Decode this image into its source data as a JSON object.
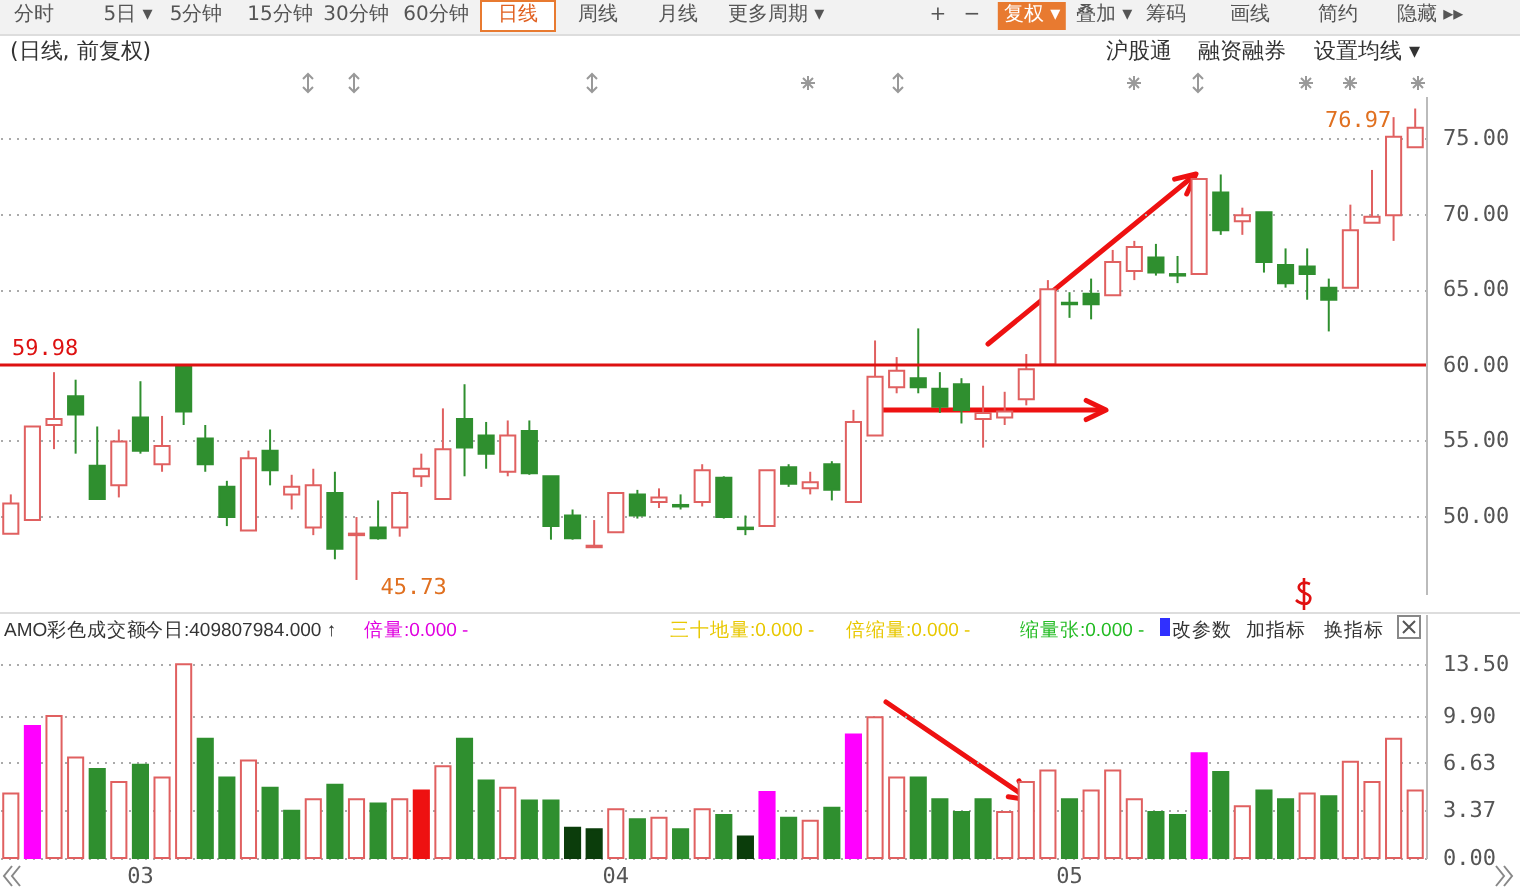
{
  "chart_data": [
    {
      "type": "other",
      "annotations": [
        "分时",
        "5日 ▾",
        "5分钟",
        "15分钟",
        "30分钟",
        "60分钟",
        "日线",
        "周线",
        "月线",
        "更多周期 ▾",
        "+",
        "−",
        "复权 ▾",
        "叠加 ▾",
        "筹码",
        "画线",
        "简约",
        "隐藏 ▸▸"
      ]
    },
    {
      "type": "candlestick",
      "title": "(日线, 前复权)",
      "annotations": [
        "沪股通",
        "融资融券",
        "设置均线 ▾",
        "45.73",
        "76.97"
      ],
      "categories": [
        null,
        null,
        null,
        null,
        null,
        null,
        "03",
        null,
        null,
        null,
        null,
        null,
        null,
        null,
        null,
        null,
        null,
        null,
        null,
        null,
        null,
        null,
        null,
        null,
        null,
        null,
        null,
        null,
        "04",
        null,
        null,
        null,
        null,
        null,
        null,
        null,
        null,
        null,
        null,
        null,
        null,
        null,
        null,
        null,
        null,
        null,
        null,
        null,
        null,
        "05",
        null,
        null,
        null,
        null,
        null,
        null,
        null,
        null,
        null,
        null,
        null,
        null,
        null,
        null,
        null,
        null
      ],
      "ohlc": [
        [
          48.8,
          51.4,
          48.8,
          50.8
        ],
        [
          49.7,
          55.9,
          49.7,
          55.9
        ],
        [
          56.0,
          59.5,
          54.4,
          56.4
        ],
        [
          57.9,
          59.0,
          54.1,
          56.7
        ],
        [
          53.3,
          55.9,
          51.1,
          51.1
        ],
        [
          52.0,
          55.7,
          51.2,
          54.9
        ],
        [
          56.5,
          58.9,
          54.1,
          54.3
        ],
        [
          53.4,
          56.6,
          52.9,
          54.6
        ],
        [
          59.98,
          59.98,
          56.0,
          56.9
        ],
        [
          55.1,
          56.0,
          52.9,
          53.4
        ],
        [
          51.9,
          52.3,
          49.3,
          49.9
        ],
        [
          49.0,
          54.3,
          49.0,
          53.8
        ],
        [
          54.3,
          55.7,
          52.0,
          53.0
        ],
        [
          51.4,
          52.7,
          50.4,
          51.9
        ],
        [
          49.2,
          53.1,
          48.7,
          52.0
        ],
        [
          51.5,
          52.9,
          47.1,
          47.8
        ],
        [
          48.7,
          49.9,
          45.73,
          48.8
        ],
        [
          49.2,
          51.0,
          48.4,
          48.5
        ],
        [
          49.2,
          51.6,
          48.6,
          51.5
        ],
        [
          52.6,
          54.1,
          51.9,
          53.1
        ],
        [
          51.1,
          57.1,
          51.1,
          54.4
        ],
        [
          56.4,
          58.7,
          52.6,
          54.5
        ],
        [
          55.3,
          56.2,
          53.1,
          54.1
        ],
        [
          52.9,
          56.3,
          52.6,
          55.3
        ],
        [
          55.6,
          56.3,
          52.7,
          52.8
        ],
        [
          52.6,
          52.6,
          48.4,
          49.3
        ],
        [
          50.0,
          50.4,
          48.4,
          48.5
        ],
        [
          47.9,
          49.7,
          47.9,
          48.0
        ],
        [
          48.9,
          51.5,
          48.9,
          51.5
        ],
        [
          51.4,
          51.7,
          49.8,
          50.0
        ],
        [
          50.9,
          51.8,
          50.5,
          51.2
        ],
        [
          50.7,
          51.4,
          50.4,
          50.6
        ],
        [
          50.9,
          53.4,
          50.6,
          53.0
        ],
        [
          52.5,
          52.6,
          49.8,
          49.9
        ],
        [
          49.2,
          50.0,
          48.7,
          49.1
        ],
        [
          49.3,
          53.0,
          49.3,
          53.0
        ],
        [
          53.2,
          53.4,
          51.9,
          52.1
        ],
        [
          51.8,
          52.9,
          51.4,
          52.2
        ],
        [
          53.4,
          53.6,
          51.0,
          51.7
        ],
        [
          50.9,
          57.0,
          50.9,
          56.2
        ],
        [
          55.3,
          61.6,
          55.3,
          59.2
        ],
        [
          58.5,
          60.5,
          58.1,
          59.6
        ],
        [
          59.1,
          62.4,
          58.1,
          58.5
        ],
        [
          58.4,
          59.5,
          56.8,
          57.2
        ],
        [
          58.7,
          59.1,
          56.1,
          57.0
        ],
        [
          56.4,
          58.6,
          54.5,
          56.8
        ],
        [
          56.5,
          58.2,
          56.0,
          56.9
        ],
        [
          57.7,
          60.7,
          57.3,
          59.7
        ],
        [
          60.0,
          65.6,
          60.0,
          65.0
        ],
        [
          64.1,
          64.8,
          63.1,
          64.0
        ],
        [
          64.7,
          65.7,
          63.0,
          64.0
        ],
        [
          64.6,
          67.6,
          64.6,
          66.8
        ],
        [
          66.2,
          68.2,
          65.6,
          67.8
        ],
        [
          67.1,
          68.0,
          65.9,
          66.1
        ],
        [
          66.0,
          67.2,
          65.4,
          65.9
        ],
        [
          66.0,
          72.3,
          66.0,
          72.3
        ],
        [
          71.4,
          72.6,
          68.6,
          68.9
        ],
        [
          69.5,
          70.4,
          68.6,
          69.9
        ],
        [
          70.1,
          70.1,
          66.1,
          66.8
        ],
        [
          66.6,
          67.7,
          65.1,
          65.4
        ],
        [
          66.5,
          67.7,
          64.3,
          66.0
        ],
        [
          65.1,
          65.7,
          62.2,
          64.3
        ],
        [
          65.1,
          70.6,
          65.1,
          68.9
        ],
        [
          69.4,
          72.9,
          69.4,
          69.8
        ],
        [
          69.9,
          76.4,
          68.2,
          75.1
        ],
        [
          74.4,
          76.97,
          74.4,
          75.7
        ]
      ],
      "colors": [
        "#e06060",
        "#e06060",
        "#e06060",
        "#2f8f2f",
        "#2f8f2f",
        "#e06060",
        "#2f8f2f",
        "#e06060",
        "#2f8f2f",
        "#2f8f2f",
        "#2f8f2f",
        "#e06060",
        "#2f8f2f",
        "#e06060",
        "#e06060",
        "#2f8f2f",
        "#e06060",
        "#2f8f2f",
        "#e06060",
        "#e06060",
        "#e06060",
        "#2f8f2f",
        "#2f8f2f",
        "#e06060",
        "#2f8f2f",
        "#2f8f2f",
        "#2f8f2f",
        "#e06060",
        "#e06060",
        "#2f8f2f",
        "#e06060",
        "#2f8f2f",
        "#e06060",
        "#2f8f2f",
        "#2f8f2f",
        "#e06060",
        "#2f8f2f",
        "#e06060",
        "#2f8f2f",
        "#e06060",
        "#e06060",
        "#e06060",
        "#2f8f2f",
        "#2f8f2f",
        "#2f8f2f",
        "#e06060",
        "#e06060",
        "#e06060",
        "#e06060",
        "#2f8f2f",
        "#2f8f2f",
        "#e06060",
        "#e06060",
        "#2f8f2f",
        "#2f8f2f",
        "#e06060",
        "#2f8f2f",
        "#e06060",
        "#2f8f2f",
        "#2f8f2f",
        "#2f8f2f",
        "#2f8f2f",
        "#e06060",
        "#e06060",
        "#e06060",
        "#e06060"
      ],
      "ylim": [
        44.8,
        77.8
      ],
      "yticks": [
        {
          "value": 50,
          "label": "50.00"
        },
        {
          "value": 55,
          "label": "55.00"
        },
        {
          "value": 60,
          "label": "60.00"
        },
        {
          "value": 65,
          "label": "65.00"
        },
        {
          "value": 70,
          "label": "70.00"
        },
        {
          "value": 75,
          "label": "75.00"
        }
      ],
      "grid": "y",
      "tick_labels": "y",
      "ref_lines": [
        {
          "axis": "y",
          "value": 59.98,
          "label": "59.98",
          "color": "#dd1111"
        }
      ]
    },
    {
      "type": "bar",
      "title": "AMO彩色成交额",
      "annotations": [
        "今日:409807984.000 ↑",
        "倍量:0.000 -",
        "三十地量:0.000 -",
        "倍缩量:0.000 -",
        "缩量张:0.000 -",
        "改参数",
        "加指标",
        "换指标"
      ],
      "categories": [
        null,
        null,
        null,
        null,
        null,
        null,
        "03",
        null,
        null,
        null,
        null,
        null,
        null,
        null,
        null,
        null,
        null,
        null,
        null,
        null,
        null,
        null,
        null,
        null,
        null,
        null,
        null,
        null,
        "04",
        null,
        null,
        null,
        null,
        null,
        null,
        null,
        null,
        null,
        null,
        null,
        null,
        null,
        null,
        null,
        null,
        null,
        null,
        null,
        null,
        "05",
        null,
        null,
        null,
        null,
        null,
        null,
        null,
        null,
        null,
        null,
        null,
        null,
        null,
        null,
        null,
        null
      ],
      "values": [
        4.5,
        9.2,
        9.9,
        7.0,
        6.2,
        5.3,
        6.5,
        5.6,
        13.5,
        8.3,
        5.6,
        6.8,
        4.9,
        3.3,
        4.1,
        5.1,
        4.1,
        3.8,
        4.1,
        4.7,
        6.4,
        8.3,
        5.4,
        4.9,
        4.0,
        4.0,
        2.1,
        2.0,
        3.4,
        2.7,
        2.8,
        2.0,
        3.4,
        3.0,
        1.5,
        4.6,
        2.8,
        2.6,
        3.5,
        8.6,
        9.8,
        5.6,
        5.6,
        4.1,
        3.2,
        4.1,
        3.2,
        5.3,
        6.1,
        4.1,
        4.7,
        6.1,
        4.1,
        3.2,
        3.0,
        7.3,
        6.0,
        3.6,
        4.7,
        4.1,
        4.5,
        4.3,
        6.7,
        5.3,
        8.3,
        4.7
      ],
      "colors": [
        "#e06060",
        "#ff00ff",
        "#e06060",
        "#e06060",
        "#2f8f2f",
        "#e06060",
        "#2f8f2f",
        "#e06060",
        "#e06060",
        "#2f8f2f",
        "#2f8f2f",
        "#e06060",
        "#2f8f2f",
        "#2f8f2f",
        "#e06060",
        "#2f8f2f",
        "#e06060",
        "#2f8f2f",
        "#e06060",
        "#ee1111",
        "#e06060",
        "#2f8f2f",
        "#2f8f2f",
        "#e06060",
        "#2f8f2f",
        "#2f8f2f",
        "#0b3d0b",
        "#0b3d0b",
        "#e06060",
        "#2f8f2f",
        "#e06060",
        "#2f8f2f",
        "#e06060",
        "#2f8f2f",
        "#0b3d0b",
        "#ff00ff",
        "#2f8f2f",
        "#e06060",
        "#2f8f2f",
        "#ff00ff",
        "#e06060",
        "#e06060",
        "#2f8f2f",
        "#2f8f2f",
        "#2f8f2f",
        "#2f8f2f",
        "#e06060",
        "#e06060",
        "#e06060",
        "#2f8f2f",
        "#e06060",
        "#e06060",
        "#e06060",
        "#2f8f2f",
        "#2f8f2f",
        "#ff00ff",
        "#2f8f2f",
        "#e06060",
        "#2f8f2f",
        "#2f8f2f",
        "#e06060",
        "#2f8f2f",
        "#e06060",
        "#e06060",
        "#e06060",
        "#e06060"
      ],
      "ylim": [
        0,
        17
      ],
      "yticks": [
        {
          "value": 0,
          "label": "0.00"
        },
        {
          "value": 3.37,
          "label": "3.37"
        },
        {
          "value": 6.63,
          "label": "6.63"
        },
        {
          "value": 9.9,
          "label": "9.90"
        },
        {
          "value": 13.5,
          "label": "13.50"
        }
      ],
      "grid": "y"
    }
  ]
}
